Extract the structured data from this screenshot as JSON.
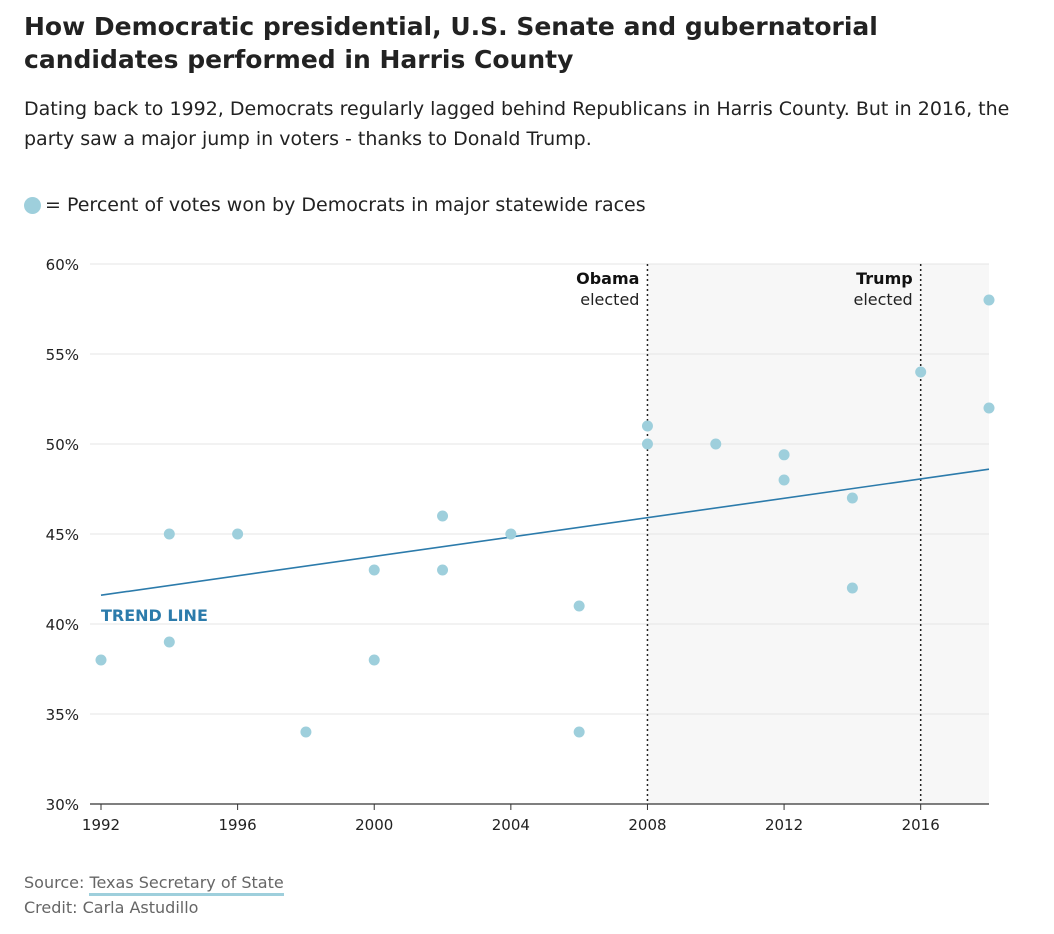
{
  "header": {
    "title": "How Democratic presidential, U.S. Senate and gubernatorial candidates performed in Harris County",
    "subtitle": "Dating back to 1992, Democrats regularly lagged behind Republicans in Harris County. But in 2016, the party saw a major jump in voters - thanks to Donald Trump."
  },
  "legend": {
    "label": "= Percent of votes won by Democrats in major statewide races",
    "color": "#9ecfdc"
  },
  "footer": {
    "source_prefix": "Source: ",
    "source_link": "Texas Secretary of State",
    "credit": "Credit: Carla Astudillo"
  },
  "chart_data": {
    "type": "scatter",
    "xlim": [
      1992,
      2018
    ],
    "ylim": [
      30,
      60
    ],
    "x_ticks": [
      1992,
      1996,
      2000,
      2004,
      2008,
      2012,
      2016
    ],
    "x_tick_labels": [
      "1992",
      "1996",
      "2000",
      "2004",
      "2008",
      "2012",
      "2016"
    ],
    "y_ticks": [
      30,
      35,
      40,
      45,
      50,
      55,
      60
    ],
    "y_tick_labels": [
      "30%",
      "35%",
      "40%",
      "45%",
      "50%",
      "55%",
      "60%"
    ],
    "grid": "horizontal",
    "series": [
      {
        "color": "#9ecfdc",
        "points": [
          {
            "x": 1992,
            "y": 38
          },
          {
            "x": 1994,
            "y": 45
          },
          {
            "x": 1994,
            "y": 39
          },
          {
            "x": 1996,
            "y": 45
          },
          {
            "x": 1998,
            "y": 34
          },
          {
            "x": 2000,
            "y": 43
          },
          {
            "x": 2000,
            "y": 38
          },
          {
            "x": 2002,
            "y": 46
          },
          {
            "x": 2002,
            "y": 43
          },
          {
            "x": 2004,
            "y": 45
          },
          {
            "x": 2006,
            "y": 41
          },
          {
            "x": 2006,
            "y": 34
          },
          {
            "x": 2008,
            "y": 51
          },
          {
            "x": 2008,
            "y": 50
          },
          {
            "x": 2010,
            "y": 50
          },
          {
            "x": 2012,
            "y": 49.4
          },
          {
            "x": 2012,
            "y": 48
          },
          {
            "x": 2014,
            "y": 47
          },
          {
            "x": 2014,
            "y": 42
          },
          {
            "x": 2016,
            "y": 54
          },
          {
            "x": 2018,
            "y": 58
          },
          {
            "x": 2018,
            "y": 52
          }
        ]
      }
    ],
    "trend_line": {
      "label": "TREND LINE",
      "color": "#2c7bab",
      "start": {
        "x": 1992,
        "y": 41.6
      },
      "end": {
        "x": 2018,
        "y": 48.6
      }
    },
    "shaded_region": {
      "x_start": 2008,
      "x_end": 2018,
      "color": "#f7f7f7"
    },
    "annotations": [
      {
        "x": 2008,
        "bold": "Obama",
        "text": "elected"
      },
      {
        "x": 2016,
        "bold": "Trump",
        "text": "elected"
      }
    ]
  }
}
